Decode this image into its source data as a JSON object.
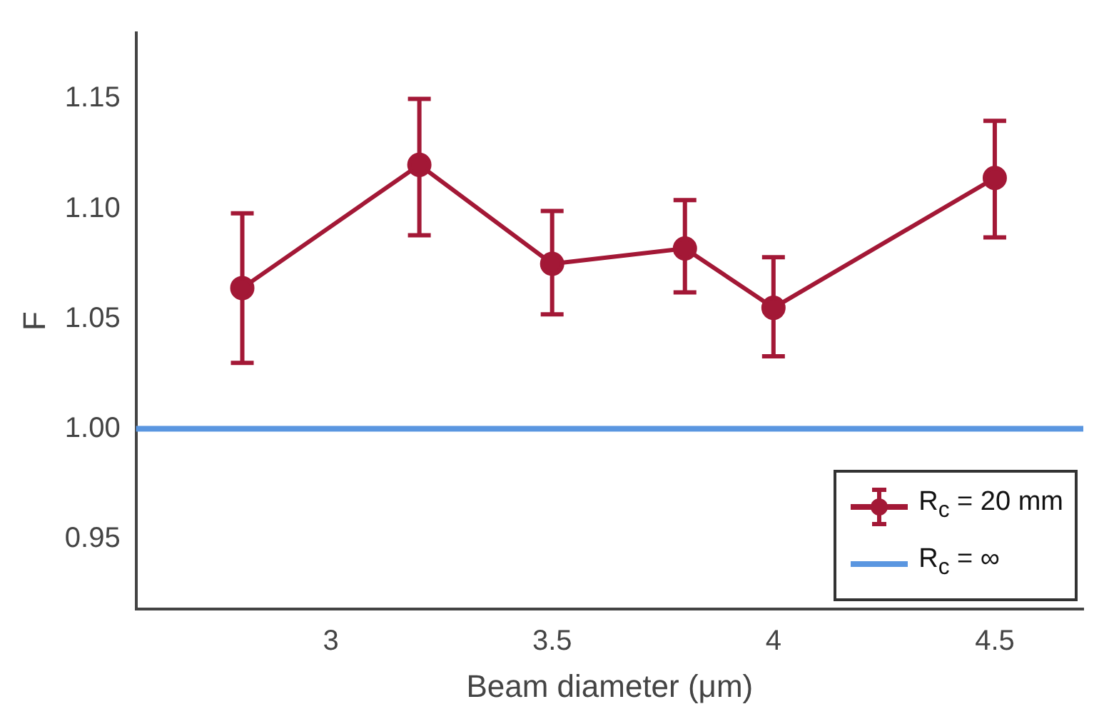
{
  "chart_data": {
    "type": "line",
    "xlabel": "Beam diameter (μm)",
    "ylabel": "F",
    "x": [
      2.8,
      3.2,
      3.5,
      3.8,
      4.0,
      4.5
    ],
    "series": [
      {
        "name": "R$_{c}$ = 20 mm",
        "color": "#a31836",
        "values": [
          1.064,
          1.12,
          1.075,
          1.082,
          1.055,
          1.114
        ],
        "errors": [
          [
            1.03,
            1.098
          ],
          [
            1.088,
            1.15
          ],
          [
            1.052,
            1.099
          ],
          [
            1.062,
            1.104
          ],
          [
            1.033,
            1.078
          ],
          [
            1.087,
            1.14
          ]
        ]
      }
    ],
    "ref_lines": [
      {
        "axis": "y",
        "value": 1.0,
        "label": "R$_{c}$ = ∞",
        "color": "#5a96e0"
      }
    ],
    "xlim": [
      2.56,
      4.7
    ],
    "ylim": [
      0.918,
      1.18
    ],
    "xticks": [
      3,
      3.5,
      4,
      4.5
    ],
    "yticks": [
      0.95,
      {
        "value": 1.0,
        "label": "1.00"
      },
      {
        "value": 1.05,
        "label": "1.05"
      },
      {
        "value": 1.1,
        "label": "1.10"
      },
      1.15
    ],
    "grid": false,
    "legend": "bottom right",
    "marker": "circle",
    "line_style": "solid"
  }
}
